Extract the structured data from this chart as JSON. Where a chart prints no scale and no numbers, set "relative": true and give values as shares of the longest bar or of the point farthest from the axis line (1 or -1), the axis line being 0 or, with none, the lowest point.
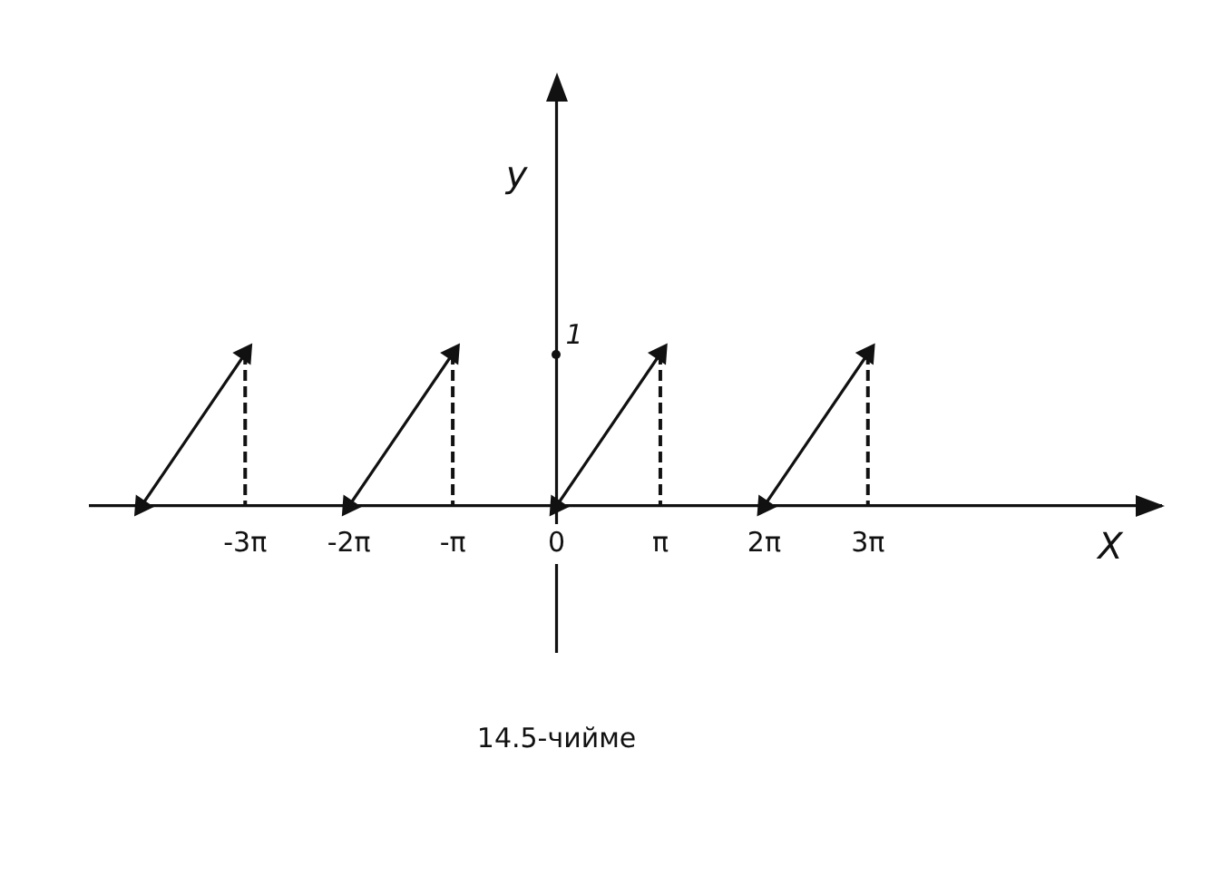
{
  "chart_data": {
    "type": "line",
    "xlabel": "X",
    "ylabel": "y",
    "series": [
      {
        "color": "#111111",
        "line_style": "solid",
        "x": [
          -12.5664,
          -9.4248
        ],
        "values": [
          0,
          1
        ]
      },
      {
        "color": "#111111",
        "line_style": "solid",
        "x": [
          -6.2832,
          -3.1416
        ],
        "values": [
          0,
          1
        ]
      },
      {
        "color": "#111111",
        "line_style": "solid",
        "x": [
          0,
          3.1416
        ],
        "values": [
          0,
          1
        ]
      },
      {
        "color": "#111111",
        "line_style": "solid",
        "x": [
          6.2832,
          9.4248
        ],
        "values": [
          0,
          1
        ]
      }
    ],
    "ref_lines": [
      {
        "axis": "x",
        "value": -9.4248,
        "color": "#111111",
        "line_style": "dashed"
      },
      {
        "axis": "x",
        "value": -3.1416,
        "color": "#111111",
        "line_style": "dashed"
      },
      {
        "axis": "x",
        "value": 3.1416,
        "color": "#111111",
        "line_style": "dashed"
      },
      {
        "axis": "x",
        "value": 9.4248,
        "color": "#111111",
        "line_style": "dashed"
      }
    ],
    "xlim": [
      -14.1,
      18.3
    ],
    "relative": true,
    "xticks": [
      {
        "value": -9.4248,
        "label": "-3π"
      },
      {
        "value": -6.2832,
        "label": "-2π"
      },
      {
        "value": -3.1416,
        "label": "-π"
      },
      0,
      {
        "value": 3.1416,
        "label": "π"
      },
      {
        "value": 6.2832,
        "label": "2π"
      },
      {
        "value": 9.4248,
        "label": "3π"
      }
    ],
    "grid": false,
    "legend": false,
    "marker": "triangle",
    "annotations": [
      "1",
      "14.5-чийме"
    ]
  }
}
